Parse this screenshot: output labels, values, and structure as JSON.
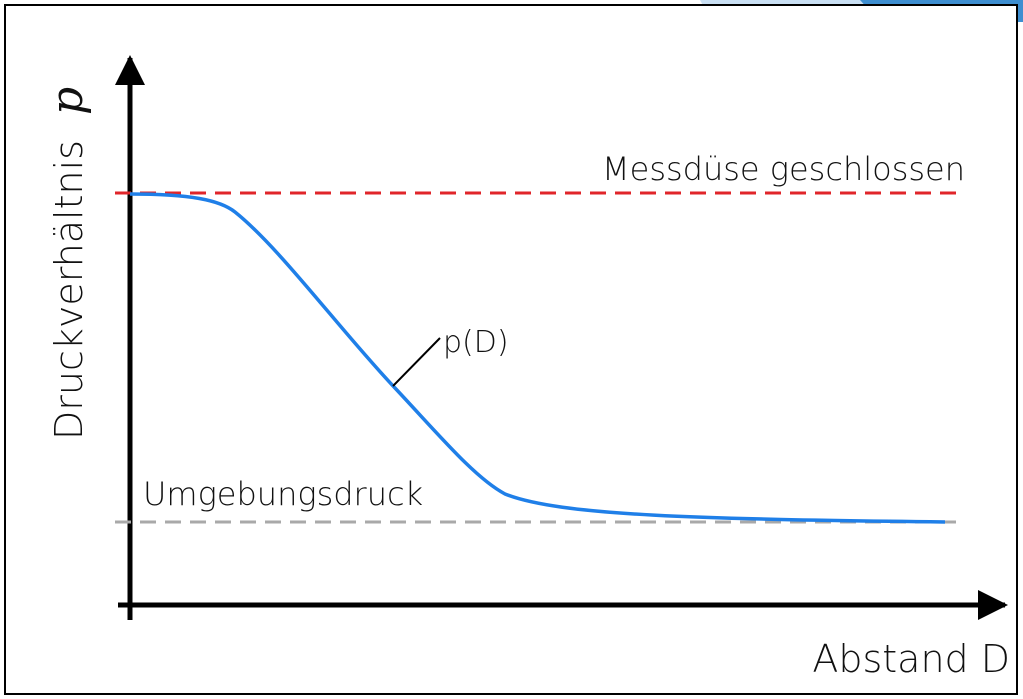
{
  "diagram": {
    "y_axis": {
      "label": "Druckverhältnis",
      "symbol": "p"
    },
    "x_axis": {
      "label": "Abstand D"
    },
    "upper_reference": "Messdüse geschlossen",
    "lower_reference": "Umgebungsdruck",
    "curve_label": "p(D)"
  }
}
